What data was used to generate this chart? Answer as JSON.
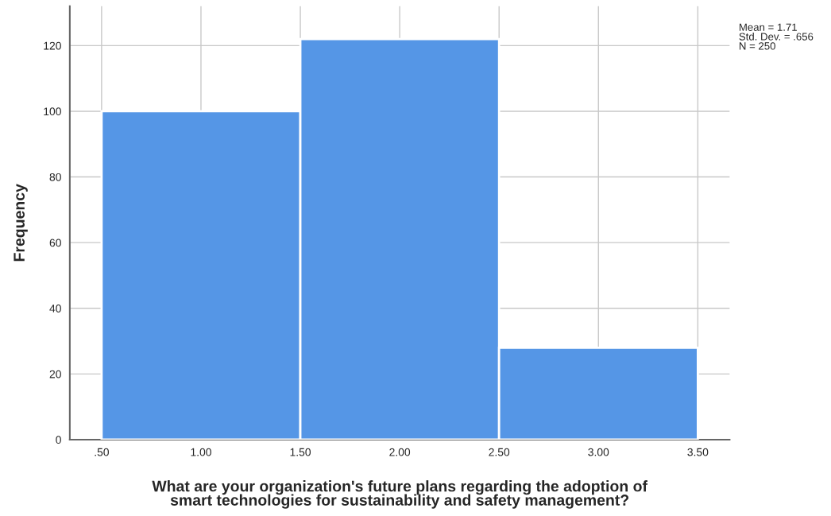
{
  "chart_data": {
    "type": "histogram",
    "bins": [
      0.5,
      1.5,
      2.5,
      3.5
    ],
    "values": [
      100,
      122,
      28
    ],
    "color": "#5596e6",
    "xlabel": "What are your organization's future plans regarding the adoption of\nsmart technologies for sustainability and safety management?",
    "ylabel": "Frequency",
    "annotations": [
      "Mean = 1.71\nStd. Dev. = .656\nN = 250"
    ],
    "xlim": [
      0.34,
      3.66
    ],
    "xticks": [
      {
        "value": 0.5,
        "label": ".50"
      },
      {
        "value": 1.0,
        "label": "1.00"
      },
      {
        "value": 1.5,
        "label": "1.50"
      },
      {
        "value": 2.0,
        "label": "2.00"
      },
      {
        "value": 2.5,
        "label": "2.50"
      },
      {
        "value": 3.0,
        "label": "3.00"
      },
      {
        "value": 3.5,
        "label": "3.50"
      }
    ],
    "ylim": [
      0,
      132
    ],
    "yticks": [
      0,
      20,
      40,
      60,
      80,
      100,
      120
    ],
    "grid": true
  }
}
